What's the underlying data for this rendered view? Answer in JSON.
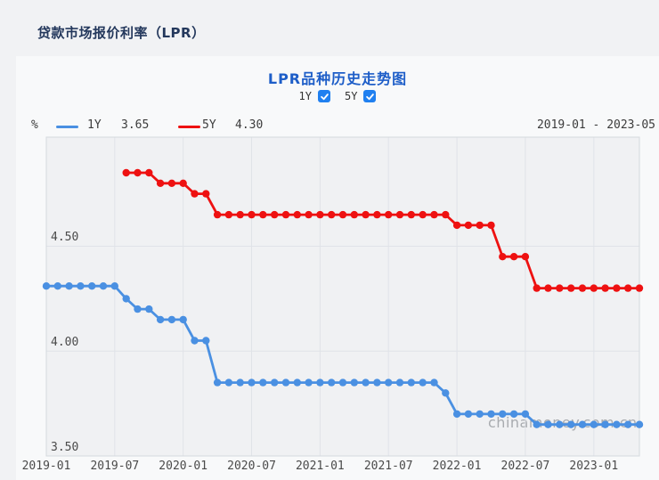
{
  "page": {
    "header_title": "贷款市场报价利率（LPR）"
  },
  "chart": {
    "title": "LPR品种历史走势图",
    "toggles": [
      {
        "label": "1Y",
        "checked": true
      },
      {
        "label": "5Y",
        "checked": true
      }
    ],
    "legend": {
      "unit": "%",
      "items": [
        {
          "name": "1Y",
          "value": "3.65",
          "color": "#4A90E2"
        },
        {
          "name": "5Y",
          "value": "4.30",
          "color": "#EE1111"
        }
      ]
    },
    "range_text": "2019-01 - 2023-05",
    "watermark": "chinamoney.com.cn",
    "checkbox_color": "#2080F0",
    "title_color": "#1E5EC8",
    "header_color": "#24385C"
  },
  "chart_data": {
    "type": "line",
    "title": "LPR品种历史走势图",
    "xlabel": "",
    "ylabel": "%",
    "ylim": [
      3.5,
      5.02
    ],
    "grid": true,
    "legend_position": "top-left",
    "categories": [
      "2019-01",
      "2019-02",
      "2019-03",
      "2019-04",
      "2019-05",
      "2019-06",
      "2019-07",
      "2019-08",
      "2019-09",
      "2019-10",
      "2019-11",
      "2019-12",
      "2020-01",
      "2020-02",
      "2020-03",
      "2020-04",
      "2020-05",
      "2020-06",
      "2020-07",
      "2020-08",
      "2020-09",
      "2020-10",
      "2020-11",
      "2020-12",
      "2021-01",
      "2021-02",
      "2021-03",
      "2021-04",
      "2021-05",
      "2021-06",
      "2021-07",
      "2021-08",
      "2021-09",
      "2021-10",
      "2021-11",
      "2021-12",
      "2022-01",
      "2022-02",
      "2022-03",
      "2022-04",
      "2022-05",
      "2022-06",
      "2022-07",
      "2022-08",
      "2022-09",
      "2022-10",
      "2022-11",
      "2022-12",
      "2023-01",
      "2023-02",
      "2023-03",
      "2023-04",
      "2023-05"
    ],
    "series": [
      {
        "name": "1Y",
        "color": "#4A90E2",
        "start_index": 0,
        "values": [
          4.31,
          4.31,
          4.31,
          4.31,
          4.31,
          4.31,
          4.31,
          4.25,
          4.2,
          4.2,
          4.15,
          4.15,
          4.15,
          4.05,
          4.05,
          3.85,
          3.85,
          3.85,
          3.85,
          3.85,
          3.85,
          3.85,
          3.85,
          3.85,
          3.85,
          3.85,
          3.85,
          3.85,
          3.85,
          3.85,
          3.85,
          3.85,
          3.85,
          3.85,
          3.85,
          3.8,
          3.7,
          3.7,
          3.7,
          3.7,
          3.7,
          3.7,
          3.7,
          3.65,
          3.65,
          3.65,
          3.65,
          3.65,
          3.65,
          3.65,
          3.65,
          3.65,
          3.65
        ]
      },
      {
        "name": "5Y",
        "color": "#EE1111",
        "start_index": 7,
        "values": [
          4.85,
          4.85,
          4.85,
          4.8,
          4.8,
          4.8,
          4.75,
          4.75,
          4.65,
          4.65,
          4.65,
          4.65,
          4.65,
          4.65,
          4.65,
          4.65,
          4.65,
          4.65,
          4.65,
          4.65,
          4.65,
          4.65,
          4.65,
          4.65,
          4.65,
          4.65,
          4.65,
          4.65,
          4.65,
          4.6,
          4.6,
          4.6,
          4.6,
          4.45,
          4.45,
          4.45,
          4.3,
          4.3,
          4.3,
          4.3,
          4.3,
          4.3,
          4.3,
          4.3,
          4.3,
          4.3
        ]
      }
    ],
    "x_ticks": [
      {
        "index": 0,
        "label": "2019-01"
      },
      {
        "index": 6,
        "label": "2019-07"
      },
      {
        "index": 12,
        "label": "2020-01"
      },
      {
        "index": 18,
        "label": "2020-07"
      },
      {
        "index": 24,
        "label": "2021-01"
      },
      {
        "index": 30,
        "label": "2021-07"
      },
      {
        "index": 36,
        "label": "2022-01"
      },
      {
        "index": 42,
        "label": "2022-07"
      },
      {
        "index": 48,
        "label": "2023-01"
      }
    ],
    "y_ticks": [
      {
        "value": 3.5,
        "label": "3.50"
      },
      {
        "value": 4.0,
        "label": "4.00"
      },
      {
        "value": 4.5,
        "label": "4.50"
      }
    ],
    "style": {
      "grid": "#E0E3E8",
      "border": "#D5D9DE",
      "plot_bg": "#F0F1F3",
      "panel_bg": "#F8F9FA",
      "page_bg": "#F1F2F4",
      "watermark_color": "#A8ABAF"
    }
  }
}
